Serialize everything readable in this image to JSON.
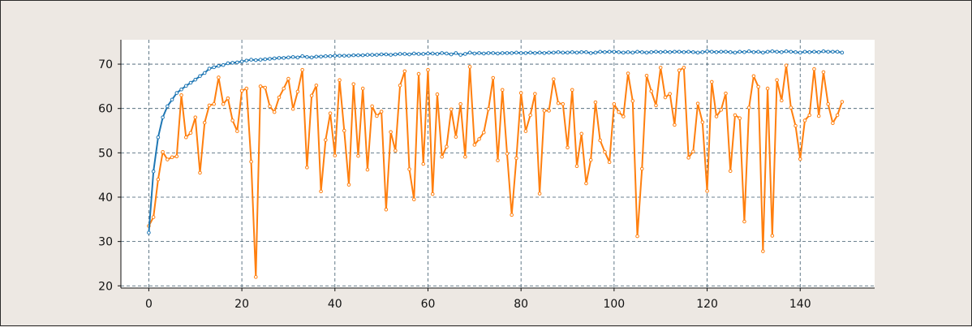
{
  "chart_data": {
    "type": "line",
    "title": "",
    "xlabel": "",
    "ylabel": "",
    "xlim": [
      -6,
      156
    ],
    "ylim": [
      19.5,
      75.5
    ],
    "x_ticks": [
      0,
      20,
      40,
      60,
      80,
      100,
      120,
      140
    ],
    "y_ticks": [
      20,
      30,
      40,
      50,
      60,
      70
    ],
    "x_tick_labels": [
      "0",
      "20",
      "40",
      "60",
      "80",
      "100",
      "120",
      "140"
    ],
    "y_tick_labels": [
      "20",
      "30",
      "40",
      "50",
      "60",
      "70"
    ],
    "grid": true,
    "legend": "none",
    "series": [
      {
        "color": "#1f77b4",
        "x": [
          0,
          1,
          2,
          3,
          4,
          5,
          6,
          7,
          8,
          9,
          10,
          11,
          12,
          13,
          14,
          15,
          16,
          17,
          18,
          19,
          20,
          21,
          22,
          23,
          24,
          25,
          26,
          27,
          28,
          29,
          30,
          31,
          32,
          33,
          34,
          35,
          36,
          37,
          38,
          39,
          40,
          41,
          42,
          43,
          44,
          45,
          46,
          47,
          48,
          49,
          50,
          51,
          52,
          53,
          54,
          55,
          56,
          57,
          58,
          59,
          60,
          61,
          62,
          63,
          64,
          65,
          66,
          67,
          68,
          69,
          70,
          71,
          72,
          73,
          74,
          75,
          76,
          77,
          78,
          79,
          80,
          81,
          82,
          83,
          84,
          85,
          86,
          87,
          88,
          89,
          90,
          91,
          92,
          93,
          94,
          95,
          96,
          97,
          98,
          99,
          100,
          101,
          102,
          103,
          104,
          105,
          106,
          107,
          108,
          109,
          110,
          111,
          112,
          113,
          114,
          115,
          116,
          117,
          118,
          119,
          120,
          121,
          122,
          123,
          124,
          125,
          126,
          127,
          128,
          129,
          130,
          131,
          132,
          133,
          134,
          135,
          136,
          137,
          138,
          139,
          140,
          141,
          142,
          143,
          144,
          145,
          146,
          147,
          148,
          149
        ],
        "values": [
          32,
          45.8,
          53.5,
          58,
          60.5,
          62,
          63.5,
          64.3,
          65.1,
          65.8,
          66.5,
          67.3,
          68,
          69,
          69.3,
          69.6,
          69.8,
          70.2,
          70.3,
          70.4,
          70.6,
          70.8,
          71,
          70.9,
          71,
          71.1,
          71.2,
          71.3,
          71.4,
          71.4,
          71.5,
          71.6,
          71.5,
          71.8,
          71.6,
          71.5,
          71.7,
          71.7,
          71.8,
          71.8,
          71.9,
          71.9,
          71.9,
          71.9,
          72,
          72,
          72,
          72.1,
          72.1,
          72.1,
          72.2,
          72.2,
          72.1,
          72.2,
          72.3,
          72.3,
          72.2,
          72.4,
          72.3,
          72.3,
          72.4,
          72.4,
          72.3,
          72.5,
          72.4,
          72.2,
          72.5,
          72.1,
          72.3,
          72.6,
          72.4,
          72.5,
          72.4,
          72.5,
          72.5,
          72.4,
          72.5,
          72.5,
          72.5,
          72.6,
          72.5,
          72.5,
          72.6,
          72.5,
          72.6,
          72.5,
          72.6,
          72.6,
          72.7,
          72.6,
          72.6,
          72.7,
          72.6,
          72.7,
          72.7,
          72.5,
          72.6,
          72.8,
          72.7,
          72.8,
          72.8,
          72.7,
          72.6,
          72.7,
          72.6,
          72.8,
          72.7,
          72.6,
          72.7,
          72.8,
          72.7,
          72.8,
          72.7,
          72.8,
          72.8,
          72.7,
          72.8,
          72.7,
          72.6,
          72.7,
          72.9,
          72.8,
          72.7,
          72.8,
          72.8,
          72.7,
          72.6,
          72.8,
          72.7,
          72.9,
          72.7,
          72.8,
          72.6,
          72.8,
          72.9,
          72.8,
          72.7,
          72.9,
          72.8,
          72.7,
          72.6,
          72.8,
          72.7,
          72.8,
          72.7,
          72.9,
          72.8,
          72.8,
          72.8,
          72.6
        ]
      },
      {
        "color": "#ff7f0e",
        "x": [
          0,
          1,
          2,
          3,
          4,
          5,
          6,
          7,
          8,
          9,
          10,
          11,
          12,
          13,
          14,
          15,
          16,
          17,
          18,
          19,
          20,
          21,
          22,
          23,
          24,
          25,
          26,
          27,
          28,
          29,
          30,
          31,
          32,
          33,
          34,
          35,
          36,
          37,
          38,
          39,
          40,
          41,
          42,
          43,
          44,
          45,
          46,
          47,
          48,
          49,
          50,
          51,
          52,
          53,
          54,
          55,
          56,
          57,
          58,
          59,
          60,
          61,
          62,
          63,
          64,
          65,
          66,
          67,
          68,
          69,
          70,
          71,
          72,
          73,
          74,
          75,
          76,
          77,
          78,
          79,
          80,
          81,
          82,
          83,
          84,
          85,
          86,
          87,
          88,
          89,
          90,
          91,
          92,
          93,
          94,
          95,
          96,
          97,
          98,
          99,
          100,
          101,
          102,
          103,
          104,
          105,
          106,
          107,
          108,
          109,
          110,
          111,
          112,
          113,
          114,
          115,
          116,
          117,
          118,
          119,
          120,
          121,
          122,
          123,
          124,
          125,
          126,
          127,
          128,
          129,
          130,
          131,
          132,
          133,
          134,
          135,
          136,
          137,
          138,
          139,
          140,
          141,
          142,
          143,
          144,
          145,
          146,
          147,
          148,
          149
        ],
        "values": [
          33.5,
          35.5,
          44,
          50.2,
          48.5,
          49,
          49.2,
          63,
          53.5,
          54.5,
          58,
          45.5,
          56.8,
          60.7,
          61,
          67,
          61,
          62.3,
          57.3,
          54.9,
          64,
          64.5,
          48,
          22,
          65,
          64.7,
          60.5,
          59.2,
          62.5,
          64.5,
          66.7,
          59.9,
          63.8,
          68.7,
          46.7,
          62.9,
          65.2,
          41.3,
          52.9,
          58.9,
          49.4,
          66.4,
          55,
          42.8,
          65.5,
          49.3,
          64.5,
          46.2,
          60.5,
          58.3,
          59.3,
          37.2,
          54.7,
          50.5,
          65.2,
          68.4,
          46.3,
          39.5,
          67.8,
          47.5,
          68.7,
          40.7,
          63.2,
          49.1,
          51.4,
          59.8,
          53.6,
          61,
          49.1,
          69.4,
          51.8,
          53.1,
          54.6,
          59.9,
          66.9,
          48.3,
          64.2,
          49.8,
          36,
          48.8,
          63.5,
          54.9,
          58.5,
          63.3,
          40.8,
          59.5,
          59.5,
          66.6,
          61.2,
          61,
          51.2,
          64.2,
          47,
          54.3,
          43.1,
          48.4,
          61.4,
          52.8,
          50.2,
          47.9,
          61,
          59.2,
          58.2,
          67.9,
          61.7,
          31.2,
          46.4,
          67.4,
          63.9,
          60.7,
          69.2,
          62.5,
          63.3,
          56.3,
          68.6,
          69.2,
          48.9,
          50.3,
          61.1,
          56.9,
          41.4,
          66,
          58.2,
          59.7,
          63.4,
          45.9,
          58.5,
          57.8,
          34.5,
          60.2,
          67.3,
          64.9,
          27.8,
          64.5,
          31.3,
          66.4,
          61.8,
          69.7,
          60.2,
          56.1,
          48.6,
          57.3,
          58.5,
          68.9,
          58.3,
          68.2,
          61,
          56.7,
          58.5,
          61.5
        ]
      }
    ]
  }
}
